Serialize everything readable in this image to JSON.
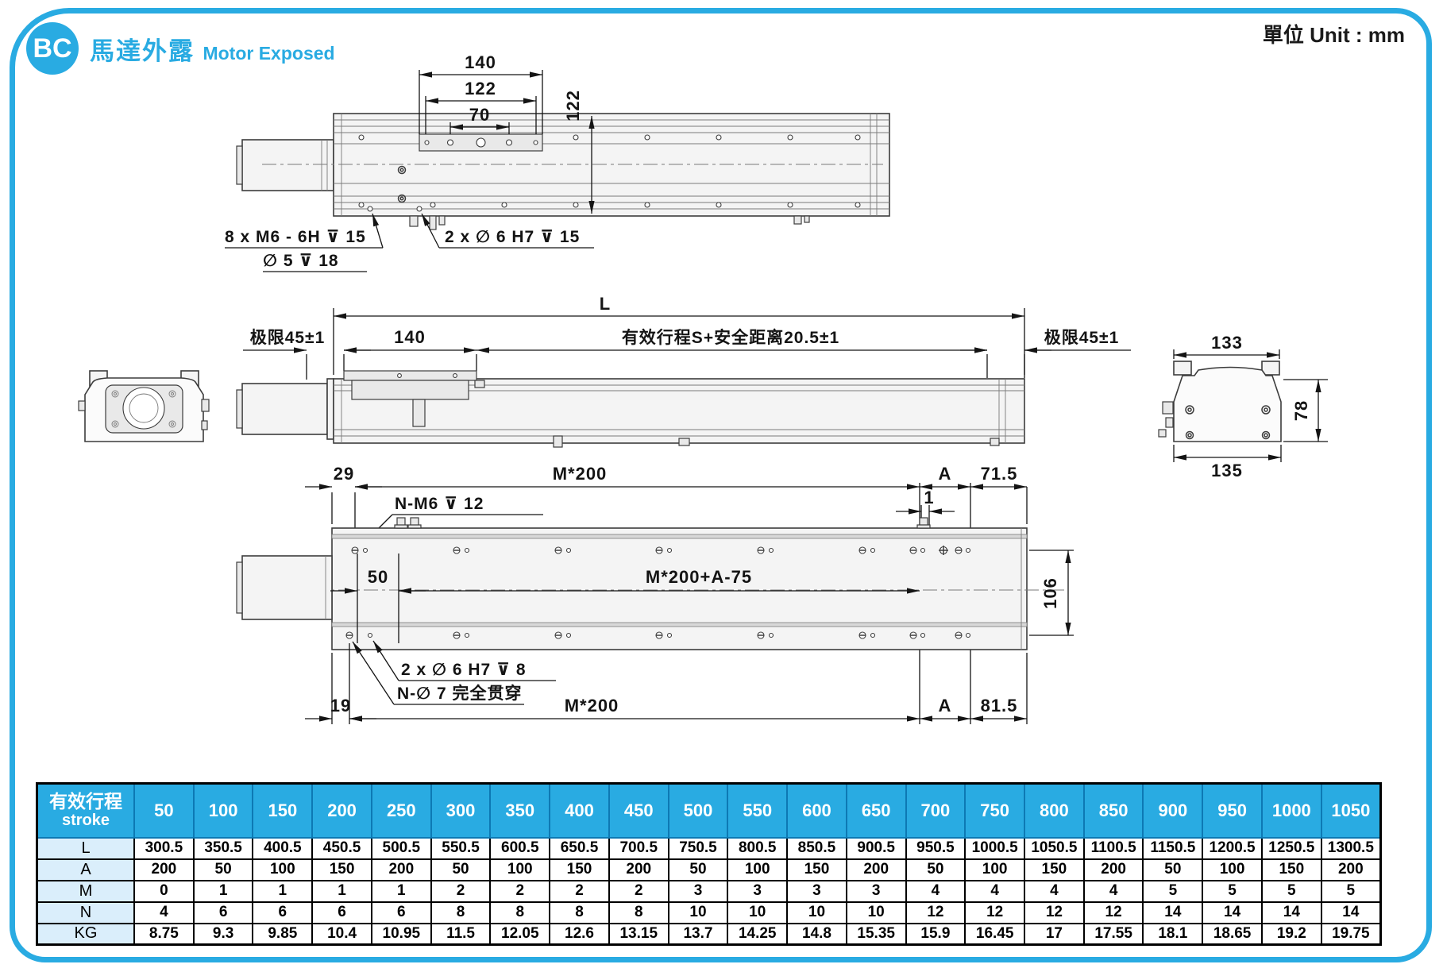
{
  "header": {
    "badge": "BC",
    "title_cn": "馬達外露",
    "title_en": "Motor Exposed",
    "unit": "單位 Unit : mm"
  },
  "colors": {
    "accent": "#29abe2",
    "line": "#3c3c3c",
    "table_label_bg": "#daeefb"
  },
  "dims": {
    "top": {
      "w140": "140",
      "w122": "122",
      "w70": "70",
      "h122": "122"
    },
    "notes": {
      "n8m6": "8 x  M6 - 6H ⊽ 15",
      "n5": "∅ 5 ⊽ 18",
      "n2x6": "2 x ∅ 6 H7 ⊽ 15"
    },
    "mid": {
      "L": "L",
      "limit_l": "极限45±1",
      "w140": "140",
      "stroke": "有效行程S+安全距离20.5±1",
      "limit_r": "极限45±1"
    },
    "end": {
      "w133": "133",
      "h78": "78",
      "w135": "135"
    },
    "bottom": {
      "w29": "29",
      "m200_top": "M*200",
      "A_top": "A",
      "w715": "71.5",
      "one": "1",
      "nm6": "N-M6 ⊽ 12",
      "w50": "50",
      "m200a": "M*200+A-75",
      "h106": "106",
      "n2x6h7": "2 x ∅ 6 H7 ⊽ 8",
      "n7": "N-∅ 7 完全贯穿",
      "w19": "19",
      "m200_bot": "M*200",
      "A_bot": "A",
      "w815": "81.5"
    }
  },
  "table": {
    "header_cn": "有效行程",
    "header_en": "stroke",
    "strokes": [
      "50",
      "100",
      "150",
      "200",
      "250",
      "300",
      "350",
      "400",
      "450",
      "500",
      "550",
      "600",
      "650",
      "700",
      "750",
      "800",
      "850",
      "900",
      "950",
      "1000",
      "1050"
    ],
    "rows": [
      {
        "label": "L",
        "values": [
          "300.5",
          "350.5",
          "400.5",
          "450.5",
          "500.5",
          "550.5",
          "600.5",
          "650.5",
          "700.5",
          "750.5",
          "800.5",
          "850.5",
          "900.5",
          "950.5",
          "1000.5",
          "1050.5",
          "1100.5",
          "1150.5",
          "1200.5",
          "1250.5",
          "1300.5"
        ]
      },
      {
        "label": "A",
        "values": [
          "200",
          "50",
          "100",
          "150",
          "200",
          "50",
          "100",
          "150",
          "200",
          "50",
          "100",
          "150",
          "200",
          "50",
          "100",
          "150",
          "200",
          "50",
          "100",
          "150",
          "200"
        ]
      },
      {
        "label": "M",
        "values": [
          "0",
          "1",
          "1",
          "1",
          "1",
          "2",
          "2",
          "2",
          "2",
          "3",
          "3",
          "3",
          "3",
          "4",
          "4",
          "4",
          "4",
          "5",
          "5",
          "5",
          "5"
        ]
      },
      {
        "label": "N",
        "values": [
          "4",
          "6",
          "6",
          "6",
          "6",
          "8",
          "8",
          "8",
          "8",
          "10",
          "10",
          "10",
          "10",
          "12",
          "12",
          "12",
          "12",
          "14",
          "14",
          "14",
          "14"
        ]
      },
      {
        "label": "KG",
        "values": [
          "8.75",
          "9.3",
          "9.85",
          "10.4",
          "10.95",
          "11.5",
          "12.05",
          "12.6",
          "13.15",
          "13.7",
          "14.25",
          "14.8",
          "15.35",
          "15.9",
          "16.45",
          "17",
          "17.55",
          "18.1",
          "18.65",
          "19.2",
          "19.75"
        ]
      }
    ]
  }
}
